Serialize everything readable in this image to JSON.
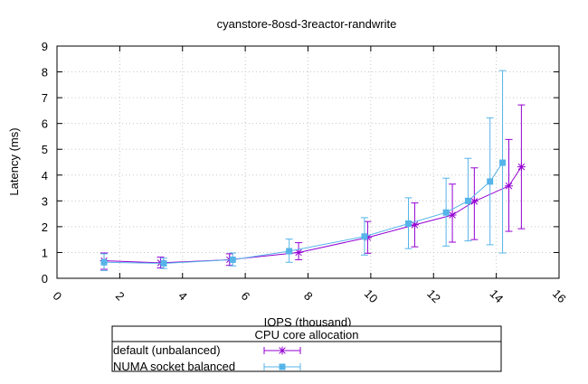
{
  "chart_data": {
    "type": "line",
    "title": "cyanstore-8osd-3reactor-randwrite",
    "xlabel": "IOPS (thousand)",
    "ylabel": "Latency (ms)",
    "xlim": [
      0,
      16
    ],
    "ylim": [
      0,
      9
    ],
    "x_ticks": [
      "0",
      "2",
      "4",
      "6",
      "8",
      "10",
      "12",
      "14",
      "16"
    ],
    "y_ticks": [
      "0",
      "1",
      "2",
      "3",
      "4",
      "5",
      "6",
      "7",
      "8",
      "9"
    ],
    "grid": true,
    "error_bars": true,
    "legend": {
      "title": "CPU core allocation",
      "placement": "below"
    },
    "series": [
      {
        "name": "default (unbalanced)",
        "color": "#9400d3",
        "marker": "asterisk",
        "points": [
          {
            "x": 1.5,
            "y": 0.68,
            "ylow": 0.35,
            "yhigh": 0.98
          },
          {
            "x": 3.3,
            "y": 0.6,
            "ylow": 0.4,
            "yhigh": 0.82
          },
          {
            "x": 5.5,
            "y": 0.72,
            "ylow": 0.5,
            "yhigh": 0.95
          },
          {
            "x": 7.7,
            "y": 1.0,
            "ylow": 0.72,
            "yhigh": 1.38
          },
          {
            "x": 9.9,
            "y": 1.58,
            "ylow": 0.97,
            "yhigh": 2.2
          },
          {
            "x": 11.4,
            "y": 2.07,
            "ylow": 1.22,
            "yhigh": 2.92
          },
          {
            "x": 12.6,
            "y": 2.45,
            "ylow": 1.4,
            "yhigh": 3.65
          },
          {
            "x": 13.3,
            "y": 2.98,
            "ylow": 1.5,
            "yhigh": 4.28
          },
          {
            "x": 14.4,
            "y": 3.58,
            "ylow": 1.82,
            "yhigh": 5.38
          },
          {
            "x": 14.8,
            "y": 4.32,
            "ylow": 1.92,
            "yhigh": 6.72
          }
        ]
      },
      {
        "name": "NUMA socket balanced",
        "color": "#56b4e9",
        "marker": "square",
        "points": [
          {
            "x": 1.5,
            "y": 0.62,
            "ylow": 0.3,
            "yhigh": 0.95
          },
          {
            "x": 3.4,
            "y": 0.58,
            "ylow": 0.38,
            "yhigh": 0.78
          },
          {
            "x": 5.6,
            "y": 0.72,
            "ylow": 0.48,
            "yhigh": 0.98
          },
          {
            "x": 7.4,
            "y": 1.05,
            "ylow": 0.62,
            "yhigh": 1.52
          },
          {
            "x": 9.8,
            "y": 1.62,
            "ylow": 0.9,
            "yhigh": 2.35
          },
          {
            "x": 11.2,
            "y": 2.12,
            "ylow": 1.15,
            "yhigh": 3.12
          },
          {
            "x": 12.4,
            "y": 2.55,
            "ylow": 1.25,
            "yhigh": 3.88
          },
          {
            "x": 13.1,
            "y": 3.0,
            "ylow": 1.45,
            "yhigh": 4.65
          },
          {
            "x": 13.8,
            "y": 3.75,
            "ylow": 1.3,
            "yhigh": 6.22
          },
          {
            "x": 14.2,
            "y": 4.48,
            "ylow": 0.98,
            "yhigh": 8.05
          }
        ]
      }
    ]
  }
}
